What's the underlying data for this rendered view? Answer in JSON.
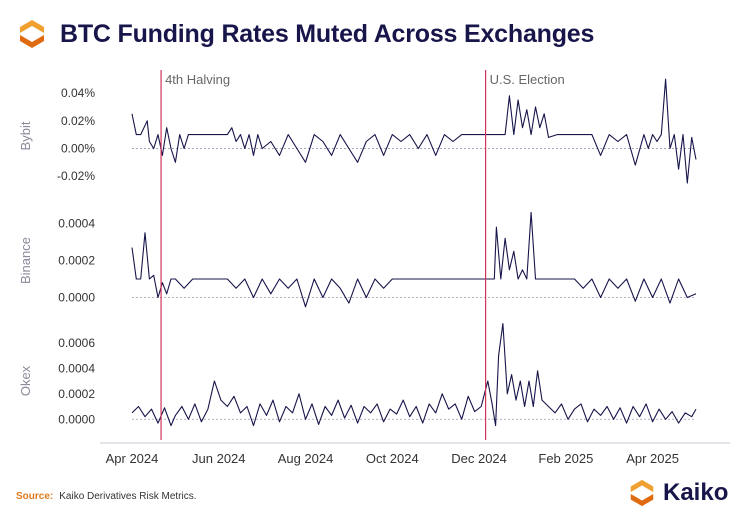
{
  "title": "BTC Funding Rates Muted Across Exchanges",
  "source": {
    "label": "Source:",
    "text": "Kaiko Derivatives Risk Metrics."
  },
  "brand": {
    "name": "Kaiko",
    "logo_icon": "kaiko-logo-icon",
    "colors": {
      "orange": "#f0a030",
      "orange_dark": "#e06a10",
      "navy": "#17154a"
    }
  },
  "chart_data": [
    {
      "type": "line",
      "panel": "Bybit",
      "ylabel": "Bybit",
      "ylim": [
        -0.03,
        0.048
      ],
      "yticks": [
        -0.02,
        0.0,
        0.02,
        0.04
      ],
      "ytick_labels": [
        "-0.02%",
        "0.00%",
        "0.02%",
        "0.04%"
      ],
      "baseline": 0,
      "x_range": [
        0,
        13
      ],
      "series": [
        {
          "name": "Bybit funding rate",
          "color": "#17154a",
          "x": [
            0,
            0.1,
            0.2,
            0.35,
            0.4,
            0.5,
            0.6,
            0.7,
            0.8,
            0.9,
            1.0,
            1.1,
            1.2,
            1.3,
            1.4,
            1.5,
            1.6,
            1.7,
            1.8,
            1.9,
            2.0,
            2.1,
            2.2,
            2.3,
            2.4,
            2.5,
            2.6,
            2.7,
            2.8,
            2.9,
            3.0,
            3.2,
            3.4,
            3.6,
            3.8,
            4.0,
            4.2,
            4.4,
            4.6,
            4.8,
            5.0,
            5.2,
            5.4,
            5.6,
            5.8,
            6.0,
            6.2,
            6.4,
            6.6,
            6.8,
            7.0,
            7.2,
            7.4,
            7.6,
            7.8,
            8.0,
            8.2,
            8.3,
            8.4,
            8.5,
            8.6,
            8.7,
            8.8,
            8.9,
            9.0,
            9.1,
            9.2,
            9.3,
            9.4,
            9.5,
            9.6,
            9.8,
            10.0,
            10.2,
            10.4,
            10.6,
            10.8,
            11.0,
            11.2,
            11.4,
            11.6,
            11.8,
            11.9,
            12.0,
            12.1,
            12.2,
            12.3,
            12.4,
            12.5,
            12.6,
            12.7,
            12.8,
            12.9,
            13.0
          ],
          "y": [
            0.025,
            0.01,
            0.01,
            0.02,
            0.005,
            0.0,
            0.01,
            -0.005,
            0.015,
            0.0,
            -0.01,
            0.01,
            0.0,
            0.01,
            0.01,
            0.01,
            0.01,
            0.01,
            0.01,
            0.01,
            0.01,
            0.01,
            0.01,
            0.015,
            0.005,
            0.01,
            0.0,
            0.01,
            -0.005,
            0.01,
            0.0,
            0.005,
            -0.005,
            0.01,
            0.0,
            -0.01,
            0.01,
            0.005,
            -0.005,
            0.01,
            0.0,
            -0.01,
            0.005,
            0.01,
            -0.005,
            0.01,
            0.005,
            0.01,
            0.0,
            0.01,
            -0.005,
            0.01,
            0.005,
            0.01,
            0.01,
            0.01,
            0.01,
            0.01,
            0.01,
            0.01,
            0.01,
            0.038,
            0.01,
            0.035,
            0.015,
            0.028,
            0.01,
            0.03,
            0.015,
            0.025,
            0.008,
            0.01,
            0.01,
            0.01,
            0.01,
            0.01,
            -0.005,
            0.01,
            0.005,
            0.01,
            -0.012,
            0.01,
            0.0,
            0.01,
            0.005,
            0.01,
            0.05,
            0.0,
            0.01,
            -0.015,
            0.01,
            -0.025,
            0.008,
            -0.008
          ]
        }
      ]
    },
    {
      "type": "line",
      "panel": "Binance",
      "ylabel": "Binance",
      "ylim": [
        -0.0001,
        0.0005
      ],
      "yticks": [
        0.0,
        0.0002,
        0.0004
      ],
      "ytick_labels": [
        "0.0000",
        "0.0002",
        "0.0004"
      ],
      "baseline": 0,
      "x_range": [
        0,
        13
      ],
      "series": [
        {
          "name": "Binance funding rate",
          "color": "#17154a",
          "x": [
            0,
            0.1,
            0.2,
            0.3,
            0.4,
            0.5,
            0.6,
            0.7,
            0.8,
            0.9,
            1.0,
            1.2,
            1.4,
            1.6,
            1.8,
            2.0,
            2.2,
            2.4,
            2.6,
            2.8,
            3.0,
            3.2,
            3.4,
            3.6,
            3.8,
            4.0,
            4.2,
            4.4,
            4.6,
            4.8,
            5.0,
            5.2,
            5.4,
            5.6,
            5.8,
            6.0,
            6.2,
            6.4,
            6.6,
            6.8,
            7.0,
            7.2,
            7.4,
            7.6,
            7.8,
            8.0,
            8.2,
            8.35,
            8.4,
            8.5,
            8.6,
            8.7,
            8.8,
            8.9,
            9.0,
            9.1,
            9.2,
            9.3,
            9.4,
            9.5,
            9.6,
            9.8,
            10.0,
            10.2,
            10.4,
            10.6,
            10.8,
            11.0,
            11.2,
            11.4,
            11.6,
            11.8,
            12.0,
            12.2,
            12.4,
            12.6,
            12.8,
            13.0
          ],
          "y": [
            0.00027,
            0.0001,
            0.0001,
            0.00035,
            0.0001,
            0.00012,
            0.0,
            8e-05,
            2e-05,
            0.0001,
            0.0001,
            5e-05,
            0.0001,
            0.0001,
            0.0001,
            0.0001,
            0.0001,
            5e-05,
            0.0001,
            0.0,
            0.0001,
            2e-05,
            0.0001,
            5e-05,
            0.0001,
            -5e-05,
            0.0001,
            0.0,
            0.0001,
            5e-05,
            -3e-05,
            0.0001,
            0.0,
            0.0001,
            5e-05,
            0.0001,
            0.0001,
            0.0001,
            0.0001,
            0.0001,
            0.0001,
            0.0001,
            0.0001,
            0.0001,
            0.0001,
            0.0001,
            0.0001,
            0.0001,
            0.00038,
            0.0001,
            0.00032,
            0.00015,
            0.00025,
            0.0001,
            0.00015,
            0.0001,
            0.00046,
            0.0001,
            0.0001,
            0.0001,
            0.0001,
            0.0001,
            0.0001,
            0.0001,
            5e-05,
            0.0001,
            0.0,
            0.0001,
            5e-05,
            0.0001,
            -2e-05,
            0.0001,
            0.0,
            0.0001,
            -3e-05,
            0.0001,
            0.0,
            2e-05
          ]
        }
      ]
    },
    {
      "type": "line",
      "panel": "Okex",
      "ylabel": "Okex",
      "ylim": [
        -0.0001,
        0.0007
      ],
      "yticks": [
        0.0,
        0.0002,
        0.0004,
        0.0006
      ],
      "ytick_labels": [
        "0.0000",
        "0.0002",
        "0.0004",
        "0.0006"
      ],
      "baseline": 0,
      "x_range": [
        0,
        13
      ],
      "series": [
        {
          "name": "Okex funding rate",
          "color": "#17154a",
          "x": [
            0,
            0.15,
            0.3,
            0.45,
            0.6,
            0.75,
            0.9,
            1.0,
            1.15,
            1.3,
            1.45,
            1.6,
            1.75,
            1.9,
            2.05,
            2.2,
            2.35,
            2.5,
            2.65,
            2.8,
            2.95,
            3.1,
            3.25,
            3.4,
            3.55,
            3.7,
            3.85,
            4.0,
            4.15,
            4.3,
            4.45,
            4.6,
            4.75,
            4.9,
            5.05,
            5.2,
            5.35,
            5.5,
            5.65,
            5.8,
            5.95,
            6.1,
            6.25,
            6.4,
            6.55,
            6.7,
            6.85,
            7.0,
            7.15,
            7.3,
            7.45,
            7.6,
            7.75,
            7.9,
            8.05,
            8.2,
            8.3,
            8.38,
            8.45,
            8.55,
            8.65,
            8.75,
            8.85,
            8.95,
            9.05,
            9.15,
            9.25,
            9.35,
            9.45,
            9.6,
            9.75,
            9.9,
            10.05,
            10.2,
            10.35,
            10.5,
            10.65,
            10.8,
            10.95,
            11.1,
            11.25,
            11.4,
            11.55,
            11.7,
            11.85,
            12.0,
            12.15,
            12.3,
            12.45,
            12.6,
            12.75,
            12.9,
            13.0
          ],
          "y": [
            5e-05,
            0.0001,
            2e-05,
            8e-05,
            -3e-05,
            9e-05,
            -5e-05,
            3e-05,
            0.0001,
            0.0,
            0.00012,
            -2e-05,
            8e-05,
            0.0003,
            0.00015,
            0.0001,
            0.00018,
            5e-05,
            0.0001,
            -5e-05,
            0.00012,
            3e-05,
            0.00015,
            -2e-05,
            0.0001,
            5e-05,
            0.0002,
            0.0,
            0.00012,
            -4e-05,
            0.0001,
            3e-05,
            0.00015,
            1e-05,
            0.00011,
            -3e-05,
            0.0001,
            5e-05,
            0.00012,
            -2e-05,
            8e-05,
            4e-05,
            0.00015,
            2e-05,
            0.0001,
            -3e-05,
            0.00012,
            5e-05,
            0.0002,
            8e-05,
            0.00012,
            0.0,
            0.00018,
            6e-05,
            0.0001,
            0.0003,
            0.00012,
            -5e-05,
            0.0005,
            0.00075,
            0.0002,
            0.00035,
            0.00015,
            0.0003,
            0.0001,
            0.0003,
            0.0001,
            0.00038,
            0.00015,
            0.0001,
            5e-05,
            0.00012,
            0.0,
            8e-05,
            0.00012,
            -2e-05,
            8e-05,
            3e-05,
            0.0001,
            0.0,
            9e-05,
            -3e-05,
            0.0001,
            2e-05,
            0.00012,
            -2e-05,
            8e-05,
            0.0,
            6e-05,
            -3e-05,
            5e-05,
            2e-05,
            8e-05
          ]
        }
      ]
    }
  ],
  "x_axis": {
    "ticks": [
      0,
      2,
      4,
      6,
      8,
      10,
      12
    ],
    "tick_labels": [
      "Apr 2024",
      "Jun 2024",
      "Aug 2024",
      "Oct 2024",
      "Dec 2024",
      "Feb 2025",
      "Apr 2025"
    ]
  },
  "events": [
    {
      "label": "4th Halving",
      "x": 0.67,
      "color": "#d0345a"
    },
    {
      "label": "U.S. Election",
      "x": 8.15,
      "color": "#d0345a"
    }
  ]
}
